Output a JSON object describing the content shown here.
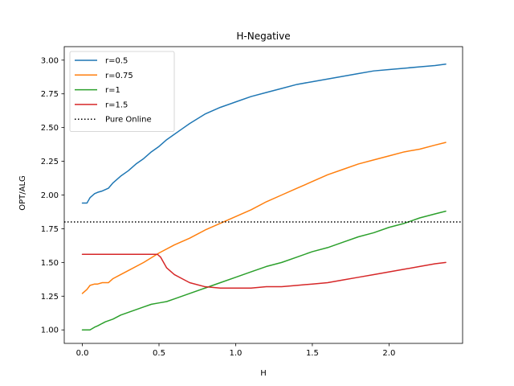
{
  "chart_data": {
    "type": "line",
    "title": "H-Negative",
    "xlabel": "H",
    "ylabel": "OPT/ALG",
    "xlim": [
      -0.118,
      2.48
    ],
    "ylim": [
      0.9,
      3.1
    ],
    "xticks": [
      0.0,
      0.5,
      1.0,
      1.5,
      2.0
    ],
    "xtick_labels": [
      "0.0",
      "0.5",
      "1.0",
      "1.5",
      "2.0"
    ],
    "yticks": [
      1.0,
      1.25,
      1.5,
      1.75,
      2.0,
      2.25,
      2.5,
      2.75,
      3.0
    ],
    "ytick_labels": [
      "1.00",
      "1.25",
      "1.50",
      "1.75",
      "2.00",
      "2.25",
      "2.50",
      "2.75",
      "3.00"
    ],
    "grid": false,
    "legend_position": "upper left",
    "series": [
      {
        "name": "r=0.5",
        "color": "#1f77b4",
        "style": "solid",
        "x": [
          0.0,
          0.03,
          0.05,
          0.08,
          0.1,
          0.13,
          0.17,
          0.2,
          0.25,
          0.3,
          0.35,
          0.4,
          0.45,
          0.5,
          0.55,
          0.6,
          0.65,
          0.7,
          0.8,
          0.9,
          1.0,
          1.1,
          1.2,
          1.3,
          1.4,
          1.5,
          1.6,
          1.7,
          1.8,
          1.9,
          2.0,
          2.1,
          2.2,
          2.3,
          2.37
        ],
        "y": [
          1.94,
          1.94,
          1.98,
          2.01,
          2.02,
          2.03,
          2.05,
          2.09,
          2.14,
          2.18,
          2.23,
          2.27,
          2.32,
          2.36,
          2.41,
          2.45,
          2.49,
          2.53,
          2.6,
          2.65,
          2.69,
          2.73,
          2.76,
          2.79,
          2.82,
          2.84,
          2.86,
          2.88,
          2.9,
          2.92,
          2.93,
          2.94,
          2.95,
          2.96,
          2.97
        ]
      },
      {
        "name": "r=0.75",
        "color": "#ff7f0e",
        "style": "solid",
        "x": [
          0.0,
          0.03,
          0.05,
          0.08,
          0.1,
          0.13,
          0.17,
          0.2,
          0.25,
          0.3,
          0.4,
          0.5,
          0.6,
          0.7,
          0.8,
          0.9,
          1.0,
          1.1,
          1.2,
          1.3,
          1.4,
          1.5,
          1.6,
          1.7,
          1.8,
          1.9,
          2.0,
          2.1,
          2.2,
          2.3,
          2.37
        ],
        "y": [
          1.27,
          1.3,
          1.33,
          1.34,
          1.34,
          1.35,
          1.35,
          1.38,
          1.41,
          1.44,
          1.5,
          1.57,
          1.63,
          1.68,
          1.74,
          1.79,
          1.84,
          1.89,
          1.95,
          2.0,
          2.05,
          2.1,
          2.15,
          2.19,
          2.23,
          2.26,
          2.29,
          2.32,
          2.34,
          2.37,
          2.39
        ]
      },
      {
        "name": "r=1",
        "color": "#2ca02c",
        "style": "solid",
        "x": [
          0.0,
          0.03,
          0.05,
          0.08,
          0.1,
          0.15,
          0.2,
          0.25,
          0.3,
          0.35,
          0.4,
          0.45,
          0.5,
          0.55,
          0.6,
          0.7,
          0.8,
          0.9,
          1.0,
          1.1,
          1.2,
          1.3,
          1.4,
          1.5,
          1.6,
          1.7,
          1.8,
          1.9,
          2.0,
          2.1,
          2.2,
          2.3,
          2.37
        ],
        "y": [
          1.0,
          1.0,
          1.0,
          1.02,
          1.03,
          1.06,
          1.08,
          1.11,
          1.13,
          1.15,
          1.17,
          1.19,
          1.2,
          1.21,
          1.23,
          1.27,
          1.31,
          1.35,
          1.39,
          1.43,
          1.47,
          1.5,
          1.54,
          1.58,
          1.61,
          1.65,
          1.69,
          1.72,
          1.76,
          1.79,
          1.83,
          1.86,
          1.88
        ]
      },
      {
        "name": "r=1.5",
        "color": "#d62728",
        "style": "solid",
        "x": [
          0.0,
          0.1,
          0.2,
          0.3,
          0.4,
          0.49,
          0.51,
          0.55,
          0.6,
          0.65,
          0.7,
          0.8,
          0.9,
          1.0,
          1.1,
          1.2,
          1.3,
          1.4,
          1.5,
          1.6,
          1.7,
          1.8,
          1.9,
          2.0,
          2.1,
          2.2,
          2.3,
          2.37
        ],
        "y": [
          1.56,
          1.56,
          1.56,
          1.56,
          1.56,
          1.56,
          1.54,
          1.46,
          1.41,
          1.38,
          1.35,
          1.32,
          1.31,
          1.31,
          1.31,
          1.32,
          1.32,
          1.33,
          1.34,
          1.35,
          1.37,
          1.39,
          1.41,
          1.43,
          1.45,
          1.47,
          1.49,
          1.5
        ]
      },
      {
        "name": "Pure Online",
        "color": "#000000",
        "style": "dotted",
        "x": [
          -0.118,
          2.48
        ],
        "y": [
          1.8,
          1.8
        ]
      }
    ]
  }
}
